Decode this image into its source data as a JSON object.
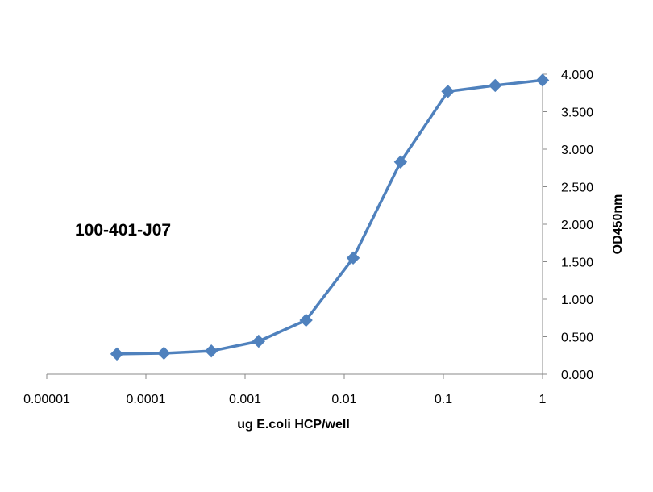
{
  "chart_data": {
    "type": "scatter",
    "title": "100-401-J07",
    "xlabel": "ug E.coli HCP/well",
    "ylabel": "OD450nm",
    "x_scale": "log",
    "xlim": [
      1e-05,
      1
    ],
    "ylim": [
      0,
      4
    ],
    "x_ticks": [
      {
        "value": 1e-05,
        "label": "0.00001"
      },
      {
        "value": 0.0001,
        "label": "0.0001"
      },
      {
        "value": 0.001,
        "label": "0.001"
      },
      {
        "value": 0.01,
        "label": "0.01"
      },
      {
        "value": 0.1,
        "label": "0.1"
      },
      {
        "value": 1,
        "label": "1"
      }
    ],
    "y_ticks": [
      {
        "value": 0,
        "label": "0.000"
      },
      {
        "value": 0.5,
        "label": "0.500"
      },
      {
        "value": 1,
        "label": "1.000"
      },
      {
        "value": 1.5,
        "label": "1.500"
      },
      {
        "value": 2,
        "label": "2.000"
      },
      {
        "value": 2.5,
        "label": "2.500"
      },
      {
        "value": 3,
        "label": "3.000"
      },
      {
        "value": 3.5,
        "label": "3.500"
      },
      {
        "value": 4,
        "label": "4.000"
      }
    ],
    "y_axis_side": "right",
    "grid": false,
    "legend": "none",
    "marker": "diamond",
    "series": [
      {
        "color": "#4F81BD",
        "x": [
          5.1e-05,
          0.000152,
          0.000457,
          0.00137,
          0.00412,
          0.0123,
          0.037,
          0.111,
          0.333,
          1
        ],
        "y": [
          0.27,
          0.28,
          0.31,
          0.44,
          0.72,
          1.55,
          2.83,
          3.77,
          3.85,
          3.92
        ]
      }
    ]
  }
}
